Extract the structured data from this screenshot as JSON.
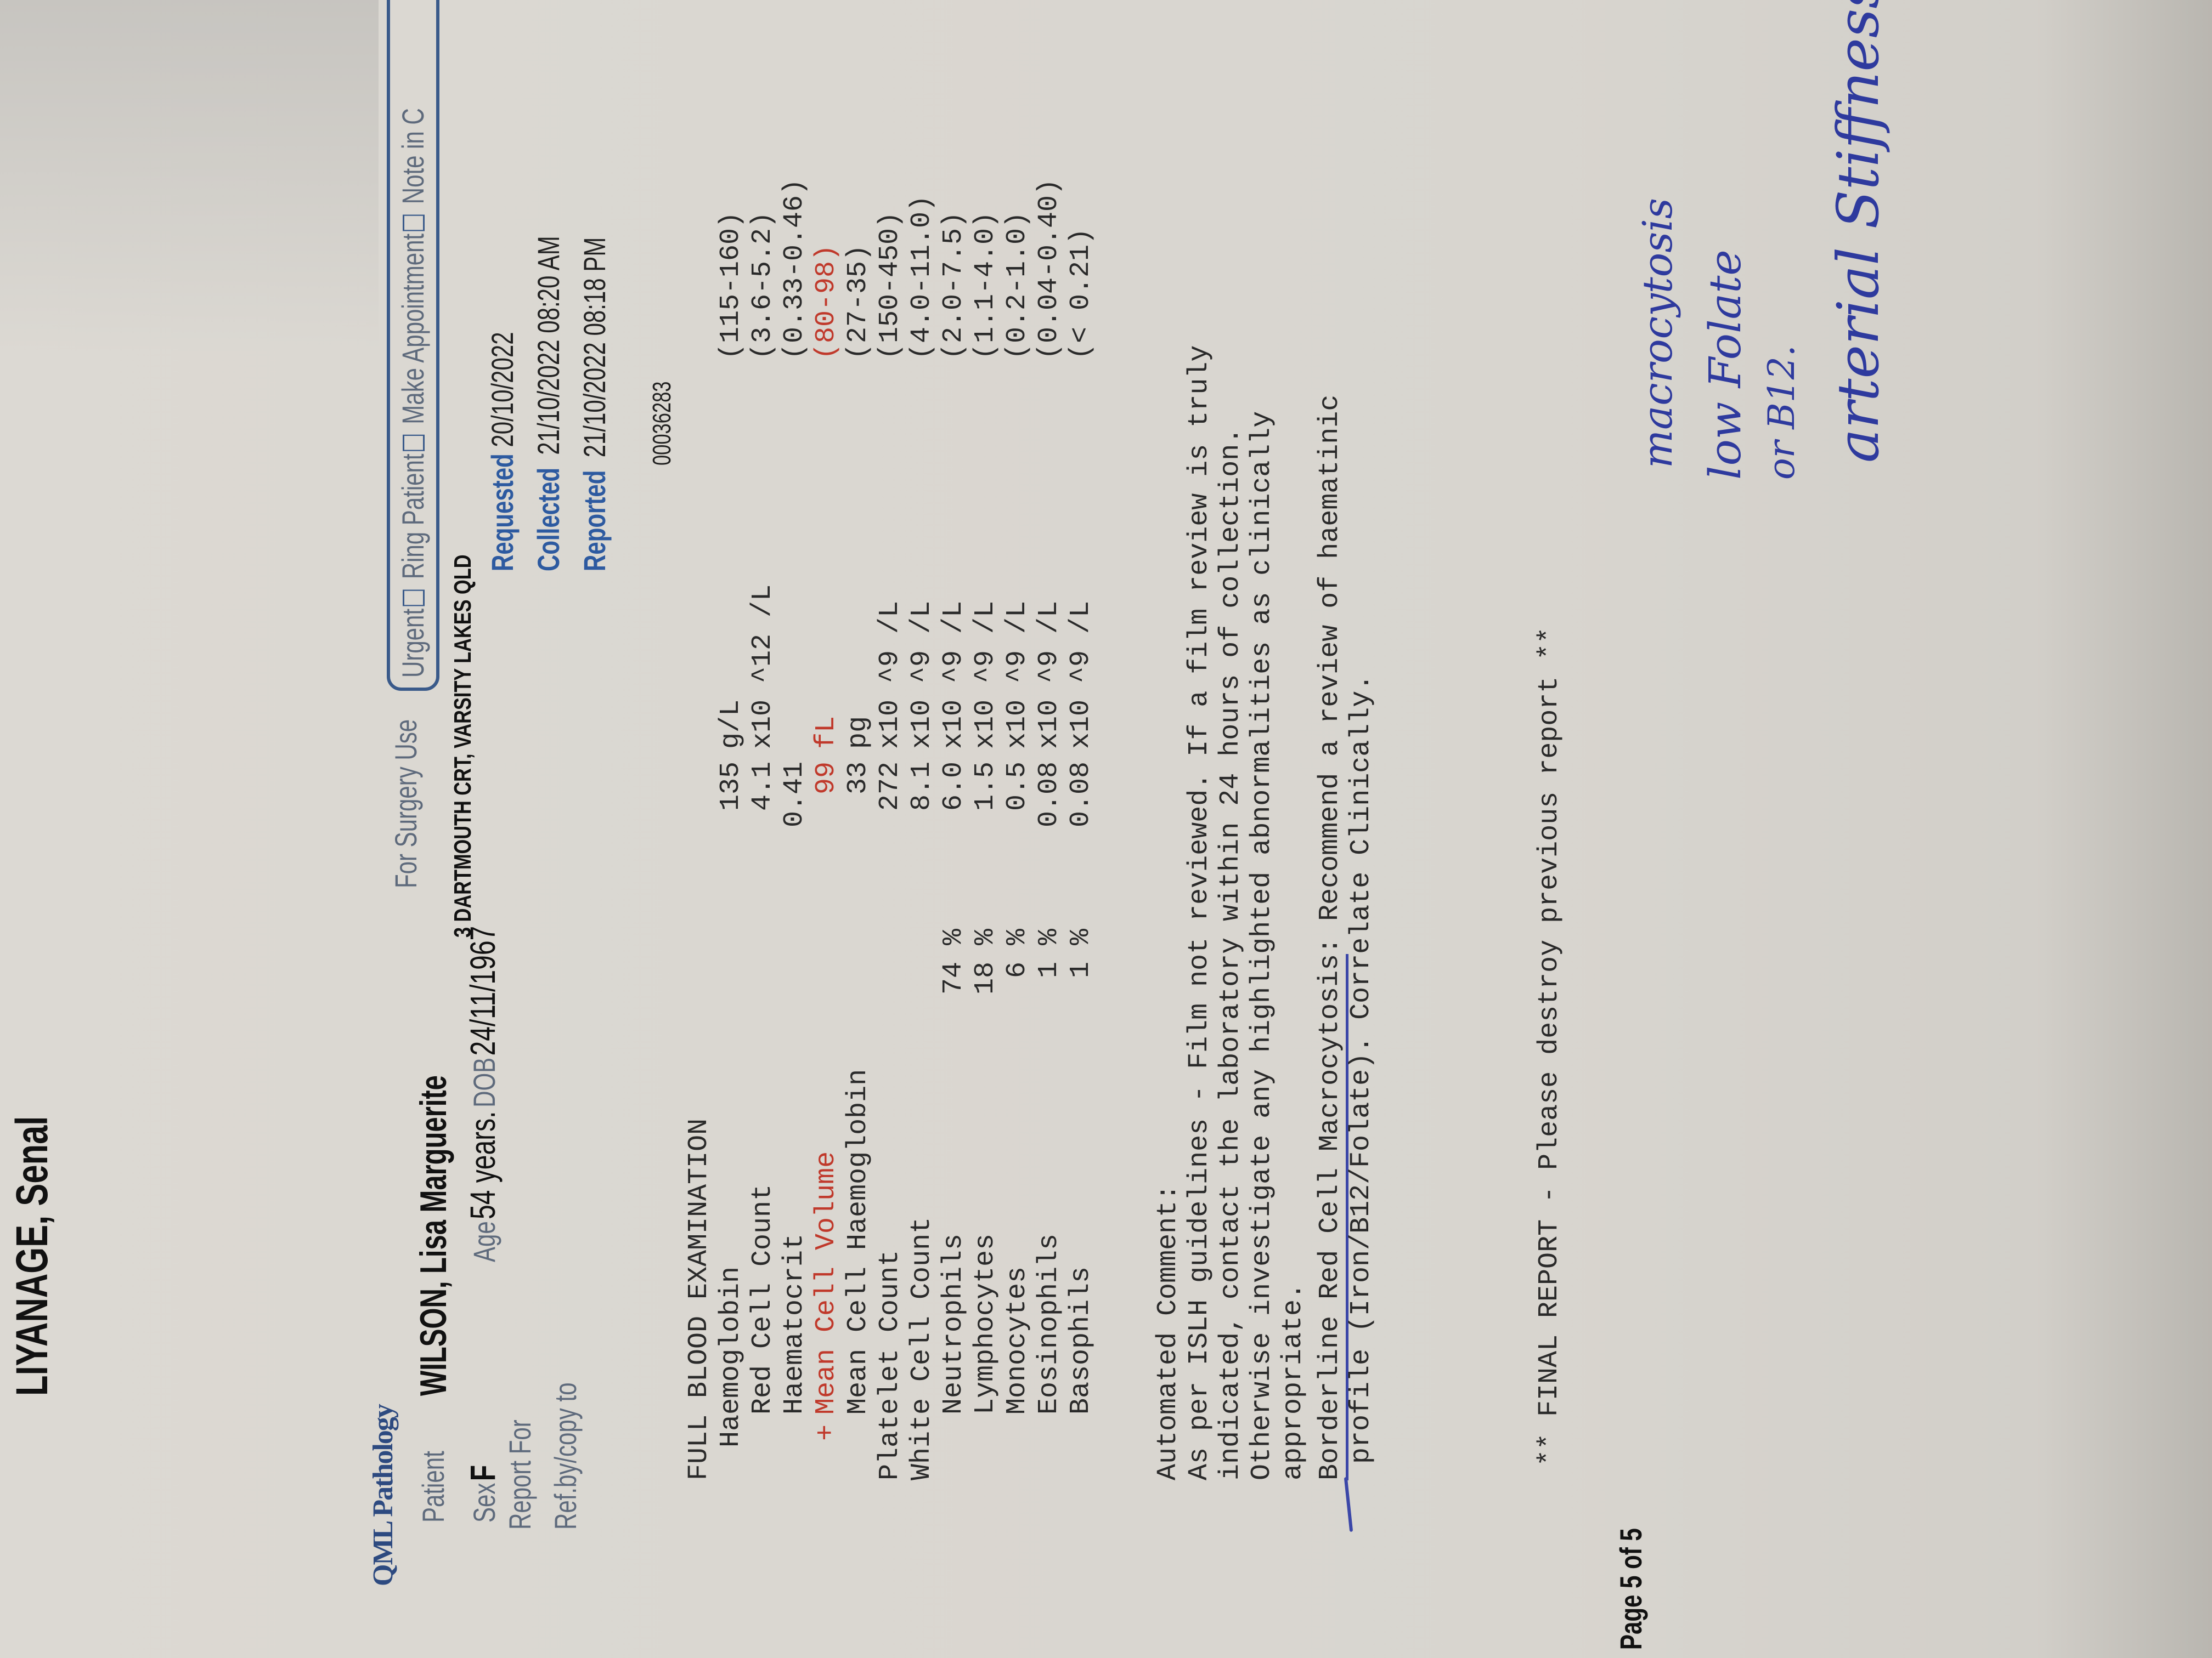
{
  "doctor_name": "LIYANAGE, Senal",
  "lab_logo": "QML Pathology",
  "header": {
    "patient_label": "Patient",
    "patient_name": "WILSON, Lisa Marguerite",
    "for_surgery_use": "For Surgery Use",
    "options": [
      "Urgent",
      "Ring Patient",
      "Make Appointment",
      "Note in C"
    ],
    "sex_label": "Sex",
    "sex": "F",
    "age_label": "Age",
    "age": "54 years.",
    "dob_label": "DOB",
    "dob": "24/11/1967",
    "address": "3 DARTMOUTH CRT, VARSITY LAKES QLD",
    "report_for_label": "Report For",
    "ref_label": "Ref.by/copy to",
    "requested_label": "Requested",
    "requested": "20/10/2022",
    "collected_label": "Collected",
    "collected": "21/10/2022 08:20 AM",
    "reported_label": "Reported",
    "reported": "21/10/2022 08:18 PM",
    "lab_number": "00036283"
  },
  "fbe": {
    "title": "FULL BLOOD EXAMINATION",
    "rows": [
      {
        "label": "Haemoglobin",
        "indent": 1,
        "flag": "",
        "percent": "",
        "value": "135",
        "unit": "g/L",
        "range": "(115-160)",
        "abnormal": false
      },
      {
        "label": "Red Cell Count",
        "indent": 2,
        "flag": "",
        "percent": "",
        "value": "4.1",
        "unit": "x10 ^12 /L",
        "range": "(3.6-5.2)",
        "abnormal": false
      },
      {
        "label": "Haematocrit",
        "indent": 2,
        "flag": "",
        "percent": "",
        "value": "0.41",
        "unit": "",
        "range": "(0.33-0.46)",
        "abnormal": false
      },
      {
        "label": "Mean Cell Volume",
        "indent": 2,
        "flag": "+",
        "percent": "",
        "value": "99",
        "unit": "fL",
        "range": "(80-98)",
        "abnormal": true
      },
      {
        "label": "Mean Cell Haemoglobin",
        "indent": 2,
        "flag": "",
        "percent": "",
        "value": "33",
        "unit": "pg",
        "range": "(27-35)",
        "abnormal": false
      },
      {
        "label": "Platelet Count",
        "indent": 0,
        "flag": "",
        "percent": "",
        "value": "272",
        "unit": "x10 ^9 /L",
        "range": "(150-450)",
        "abnormal": false
      },
      {
        "label": "White Cell Count",
        "indent": 0,
        "flag": "",
        "percent": "",
        "value": "8.1",
        "unit": "x10 ^9 /L",
        "range": "(4.0-11.0)",
        "abnormal": false
      },
      {
        "label": "Neutrophils",
        "indent": 2,
        "flag": "",
        "percent": "74 %",
        "value": "6.0",
        "unit": "x10 ^9 /L",
        "range": "(2.0-7.5)",
        "abnormal": false
      },
      {
        "label": "Lymphocytes",
        "indent": 2,
        "flag": "",
        "percent": "18 %",
        "value": "1.5",
        "unit": "x10 ^9 /L",
        "range": "(1.1-4.0)",
        "abnormal": false
      },
      {
        "label": "Monocytes",
        "indent": 2,
        "flag": "",
        "percent": "6 %",
        "value": "0.5",
        "unit": "x10 ^9 /L",
        "range": "(0.2-1.0)",
        "abnormal": false
      },
      {
        "label": "Eosinophils",
        "indent": 2,
        "flag": "",
        "percent": "1 %",
        "value": "0.08",
        "unit": "x10 ^9 /L",
        "range": "(0.04-0.40)",
        "abnormal": false
      },
      {
        "label": "Basophils",
        "indent": 2,
        "flag": "",
        "percent": "1 %",
        "value": "0.08",
        "unit": "x10 ^9 /L",
        "range": "(< 0.21)",
        "abnormal": false
      }
    ]
  },
  "comment": {
    "heading": "Automated Comment:",
    "lines": [
      "As per ISLH guidelines - Film not reviewed. If a film review is truly",
      "indicated, contact the laboratory within 24 hours of collection.",
      "Otherwise investigate any highlighted abnormalities as clinically",
      "appropriate."
    ],
    "recommend_underlined": "Borderline Red Cell Macrocytosis",
    "recommend_rest": ": Recommend a review of haematinic",
    "recommend_line2": "profile (Iron/B12/Folate). Correlate Clinically."
  },
  "final_report": "** FINAL REPORT - Please destroy previous report **",
  "page_number": "Page 5 of 5",
  "handwritten_notes": [
    "macrocytosis",
    "low Folate",
    "or B12.",
    "arterial Stiffness"
  ],
  "colors": {
    "abnormal": "#c0392b",
    "header_blue": "#2d5aa0",
    "pen_ink": "#2e3a9e",
    "paper": "#d9d6d0"
  }
}
